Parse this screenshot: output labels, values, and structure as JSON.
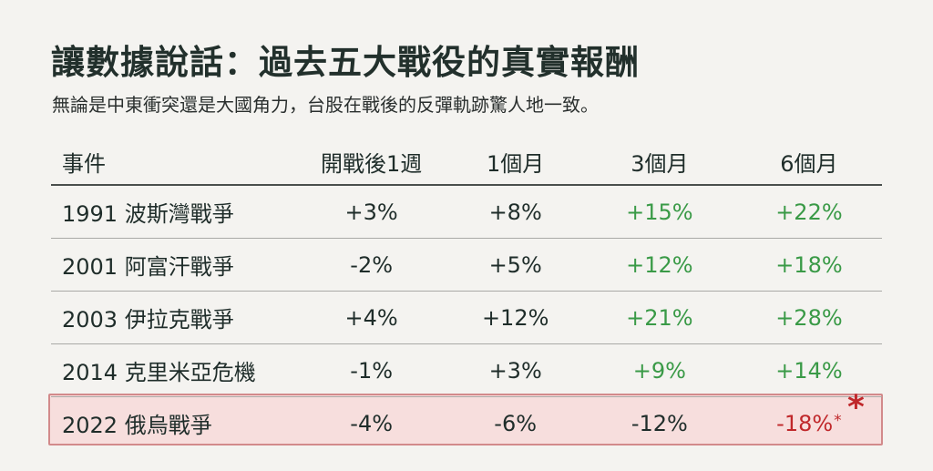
{
  "title": "讓數據說話：過去五大戰役的真實報酬",
  "subtitle": "無論是中東衝突還是大國角力，台股在戰後的反彈軌跡驚人地一致。",
  "colors": {
    "positive": "#3a9a47",
    "negative": "#c0282b",
    "highlight_bg": "#f7dedd"
  },
  "chart_data": {
    "type": "table",
    "columns": [
      "事件",
      "開戰後1週",
      "1個月",
      "3個月",
      "6個月"
    ],
    "rows": [
      {
        "event": "1991 波斯灣戰爭",
        "w1": "+3%",
        "m1": "+8%",
        "m3": "+15%",
        "m6": "+22%"
      },
      {
        "event": "2001 阿富汗戰爭",
        "w1": "-2%",
        "m1": "+5%",
        "m3": "+12%",
        "m6": "+18%"
      },
      {
        "event": "2003 伊拉克戰爭",
        "w1": "+4%",
        "m1": "+12%",
        "m3": "+21%",
        "m6": "+28%"
      },
      {
        "event": "2014 克里米亞危機",
        "w1": "-1%",
        "m1": "+3%",
        "m3": "+9%",
        "m6": "+14%"
      },
      {
        "event": "2022 俄烏戰爭",
        "w1": "-4%",
        "m1": "-6%",
        "m3": "-12%",
        "m6": "-18%"
      }
    ],
    "highlighted_row": "2022 俄烏戰爭",
    "footnote_marks": {
      "small": "*",
      "big": "*"
    }
  }
}
